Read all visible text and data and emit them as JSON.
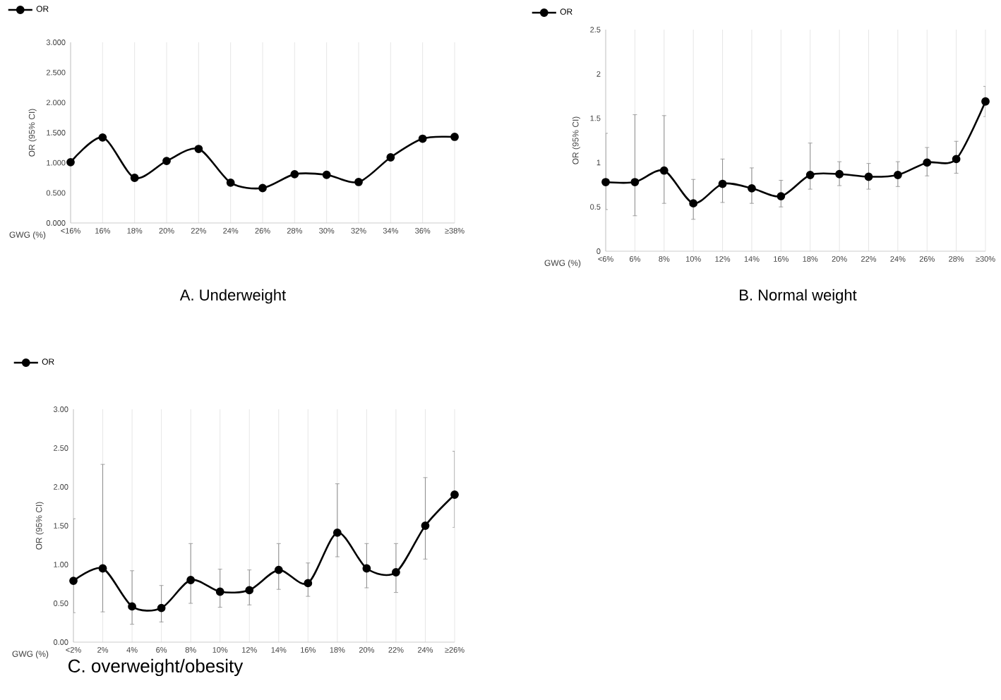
{
  "chart_data": [
    {
      "type": "line",
      "title": "A. Underweight",
      "xlabel": "GWG (%)",
      "ylabel": "OR (95% CI)",
      "categories": [
        "<16%",
        "16%",
        "18%",
        "20%",
        "22%",
        "24%",
        "26%",
        "28%",
        "30%",
        "32%",
        "34%",
        "36%",
        "≥38%"
      ],
      "series": [
        {
          "name": "OR",
          "color": "#000000",
          "values": [
            1.01,
            1.42,
            0.75,
            1.03,
            1.23,
            0.67,
            0.58,
            0.81,
            0.8,
            0.68,
            1.09,
            1.4,
            1.43
          ]
        }
      ],
      "ylim": [
        0,
        3
      ],
      "yticks": [
        {
          "value": 0,
          "label": "0.000"
        },
        {
          "value": 0.5,
          "label": "0.500"
        },
        {
          "value": 1,
          "label": "1.000"
        },
        {
          "value": 1.5,
          "label": "1.500"
        },
        {
          "value": 2,
          "label": "2.000"
        },
        {
          "value": 2.5,
          "label": "2.500"
        },
        {
          "value": 3,
          "label": "3.000"
        }
      ],
      "grid": "x",
      "legend": "top left",
      "marker": "circle",
      "line_style": "solid"
    },
    {
      "type": "line",
      "title": "B. Normal weight",
      "xlabel": "GWG (%)",
      "ylabel": "OR (95% CI)",
      "categories": [
        "<6%",
        "6%",
        "8%",
        "10%",
        "12%",
        "14%",
        "16%",
        "18%",
        "20%",
        "22%",
        "24%",
        "26%",
        "28%",
        "≥30%"
      ],
      "series": [
        {
          "name": "OR",
          "color": "#000000",
          "values": [
            0.78,
            0.78,
            0.91,
            0.54,
            0.76,
            0.71,
            0.62,
            0.86,
            0.87,
            0.84,
            0.86,
            1.0,
            1.04,
            1.69
          ],
          "errors": [
            [
              0.47,
              1.33
            ],
            [
              0.4,
              1.54
            ],
            [
              0.54,
              1.53
            ],
            [
              0.36,
              0.81
            ],
            [
              0.55,
              1.04
            ],
            [
              0.54,
              0.94
            ],
            [
              0.5,
              0.8
            ],
            [
              0.7,
              1.22
            ],
            [
              0.74,
              1.01
            ],
            [
              0.7,
              0.99
            ],
            [
              0.73,
              1.01
            ],
            [
              0.85,
              1.17
            ],
            [
              0.88,
              1.24
            ],
            [
              1.52,
              1.86
            ]
          ]
        }
      ],
      "ylim": [
        0,
        2.5
      ],
      "yticks": [
        0,
        0.5,
        1,
        1.5,
        2,
        2.5
      ],
      "grid": "x",
      "legend": "top left",
      "marker": "circle",
      "line_style": "solid"
    },
    {
      "type": "line",
      "title": "C. overweight/obesity",
      "xlabel": "GWG (%)",
      "ylabel": "OR (95% CI)",
      "categories": [
        "<2%",
        "2%",
        "4%",
        "6%",
        "8%",
        "10%",
        "12%",
        "14%",
        "16%",
        "18%",
        "20%",
        "22%",
        "24%",
        "≥26%"
      ],
      "series": [
        {
          "name": "OR",
          "color": "#000000",
          "values": [
            0.79,
            0.95,
            0.46,
            0.44,
            0.8,
            0.65,
            0.67,
            0.93,
            0.76,
            1.41,
            0.95,
            0.9,
            1.5,
            1.9
          ],
          "errors": [
            [
              0.38,
              1.59
            ],
            [
              0.39,
              2.29
            ],
            [
              0.23,
              0.92
            ],
            [
              0.26,
              0.73
            ],
            [
              0.5,
              1.27
            ],
            [
              0.45,
              0.94
            ],
            [
              0.48,
              0.93
            ],
            [
              0.68,
              1.27
            ],
            [
              0.59,
              1.02
            ],
            [
              1.1,
              2.04
            ],
            [
              0.7,
              1.27
            ],
            [
              0.64,
              1.27
            ],
            [
              1.07,
              2.12
            ],
            [
              1.48,
              2.46
            ]
          ]
        }
      ],
      "ylim": [
        0,
        3
      ],
      "yticks": [
        {
          "value": 0,
          "label": "0.00"
        },
        {
          "value": 0.5,
          "label": "0.50"
        },
        {
          "value": 1,
          "label": "1.00"
        },
        {
          "value": 1.5,
          "label": "1.50"
        },
        {
          "value": 2,
          "label": "2.00"
        },
        {
          "value": 2.5,
          "label": "2.50"
        },
        {
          "value": 3,
          "label": "3.00"
        }
      ],
      "grid": "x",
      "legend": "top left",
      "marker": "circle",
      "line_style": "solid"
    }
  ]
}
